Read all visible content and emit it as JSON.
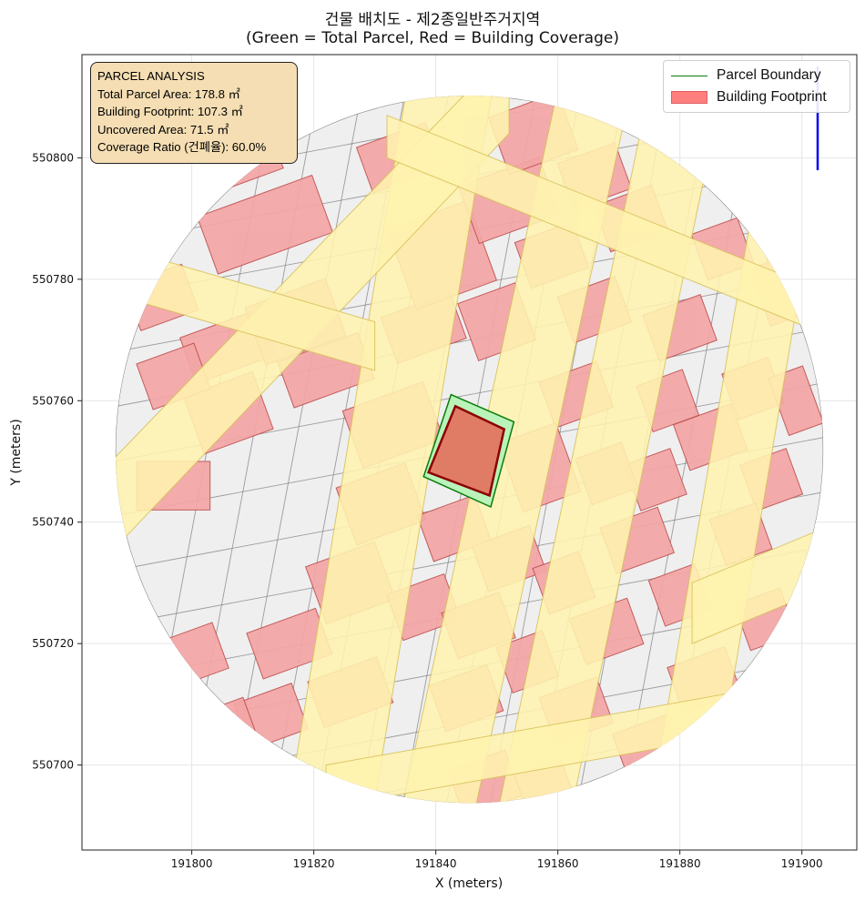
{
  "title_line1": "건물 배치도 - 제2종일반주거지역",
  "title_line2": "(Green = Total Parcel, Red = Building Coverage)",
  "info_box": {
    "heading": "PARCEL ANALYSIS",
    "total_area": "Total Parcel Area: 178.8 ㎡",
    "footprint": "Building Footprint: 107.3 ㎡",
    "uncovered": "Uncovered Area: 71.5 ㎡",
    "coverage": "Coverage Ratio (건폐율): 60.0%"
  },
  "legend": [
    {
      "label": "Parcel Boundary",
      "color": "#0a7d0a",
      "kind": "line"
    },
    {
      "label": "Building Footprint",
      "color": "#ff7f7f",
      "kind": "patch"
    }
  ],
  "colors": {
    "parcel_line": "#0a7d0a",
    "parcel_fill": "#b9f3b9",
    "building_main": "#e07b66",
    "building_outline": "#8b0000",
    "roads": "#fff3b0",
    "background_buildings": "#f4a5a5",
    "lots": "#efefef"
  },
  "chart_data": {
    "type": "map",
    "xlabel": "X (meters)",
    "ylabel": "Y (meters)",
    "xlim": [
      191782,
      191909
    ],
    "ylim": [
      550686,
      550817
    ],
    "xticks": [
      191800,
      191820,
      191840,
      191860,
      191880,
      191900
    ],
    "yticks": [
      550700,
      550720,
      550740,
      550760,
      550780,
      550800
    ],
    "grid": true,
    "legend_position": "top-right",
    "site": {
      "center": [
        191845.5,
        550752
      ],
      "radius": 58
    },
    "parcel_boundary": [
      [
        191842.5,
        550761
      ],
      [
        191852.8,
        550756.5
      ],
      [
        191849,
        550742.5
      ],
      [
        191838,
        550747.5
      ]
    ],
    "building_footprint": [
      [
        191843.2,
        550759.1
      ],
      [
        191851.2,
        550755.3
      ],
      [
        191848.8,
        550744.4
      ],
      [
        191838.8,
        550748.2
      ]
    ],
    "roads": [
      [
        [
          191814,
          550682
        ],
        [
          191828,
          550682
        ],
        [
          191850,
          550816
        ],
        [
          191836,
          550816
        ]
      ],
      [
        [
          191833,
          550686
        ],
        [
          191845,
          550686
        ],
        [
          191873,
          550816
        ],
        [
          191861,
          550816
        ]
      ],
      [
        [
          191848,
          550682
        ],
        [
          191860,
          550682
        ],
        [
          191888,
          550816
        ],
        [
          191876,
          550816
        ]
      ],
      [
        [
          191874,
          550686
        ],
        [
          191884,
          550686
        ],
        [
          191906,
          550816
        ],
        [
          191896,
          550816
        ]
      ],
      [
        [
          191782,
          550730
        ],
        [
          191782,
          550745
        ],
        [
          191852,
          550818
        ],
        [
          191852,
          550804
        ]
      ],
      [
        [
          191782,
          550787
        ],
        [
          191782,
          550779
        ],
        [
          191830,
          550765
        ],
        [
          191830,
          550773
        ]
      ],
      [
        [
          191832,
          550807
        ],
        [
          191832,
          550800
        ],
        [
          191906,
          550770
        ],
        [
          191906,
          550777
        ]
      ],
      [
        [
          191822,
          550693
        ],
        [
          191822,
          550700
        ],
        [
          191906,
          550715
        ],
        [
          191906,
          550708
        ]
      ],
      [
        [
          191882,
          550720
        ],
        [
          191882,
          550730
        ],
        [
          191906,
          550740
        ],
        [
          191906,
          550730
        ]
      ]
    ],
    "buildings": [
      [
        191812,
        550789,
        20,
        10,
        -20
      ],
      [
        191806,
        550769,
        14,
        8,
        -20
      ],
      [
        191817,
        550773,
        14,
        10,
        -20
      ],
      [
        191797,
        550746,
        12,
        8,
        0
      ],
      [
        191806,
        550758,
        12,
        10,
        -20
      ],
      [
        191822,
        550765,
        14,
        8,
        -20
      ],
      [
        191833,
        550756,
        14,
        10,
        -20
      ],
      [
        191831,
        550743,
        12,
        10,
        -20
      ],
      [
        191826,
        550730,
        12,
        10,
        -20
      ],
      [
        191816,
        550720,
        12,
        8,
        -20
      ],
      [
        191813,
        550708,
        10,
        8,
        -20
      ],
      [
        191826,
        550712,
        12,
        8,
        -20
      ],
      [
        191838,
        550726,
        10,
        8,
        -20
      ],
      [
        191843,
        550739,
        10,
        8,
        -20
      ],
      [
        191838,
        550772,
        12,
        8,
        -20
      ],
      [
        191841,
        550784,
        14,
        14,
        -20
      ],
      [
        191850,
        550773,
        10,
        10,
        -20
      ],
      [
        191852,
        550793,
        14,
        10,
        -20
      ],
      [
        191856,
        550804,
        12,
        10,
        -20
      ],
      [
        191859,
        550784,
        10,
        8,
        -20
      ],
      [
        191866,
        550797,
        10,
        8,
        -20
      ],
      [
        191872,
        550790,
        10,
        8,
        -20
      ],
      [
        191866,
        550775,
        10,
        8,
        -20
      ],
      [
        191863,
        550761,
        10,
        8,
        -20
      ],
      [
        191857,
        550749,
        10,
        12,
        -20
      ],
      [
        191852,
        550734,
        10,
        8,
        -20
      ],
      [
        191847,
        550723,
        10,
        8,
        -20
      ],
      [
        191845,
        550711,
        10,
        8,
        -20
      ],
      [
        191848,
        550697,
        10,
        8,
        -20
      ],
      [
        191858,
        550696,
        8,
        8,
        -20
      ],
      [
        191863,
        550709,
        10,
        8,
        -20
      ],
      [
        191868,
        550722,
        10,
        8,
        -20
      ],
      [
        191873,
        550737,
        10,
        8,
        -20
      ],
      [
        191876,
        550747,
        8,
        8,
        -20
      ],
      [
        191878,
        550760,
        8,
        8,
        -20
      ],
      [
        191880,
        550772,
        10,
        8,
        -20
      ],
      [
        191885,
        550754,
        10,
        8,
        -20
      ],
      [
        191892,
        550762,
        8,
        8,
        -20
      ],
      [
        191895,
        550747,
        8,
        8,
        -20
      ],
      [
        191899,
        550760,
        6,
        10,
        -20
      ],
      [
        191890,
        550738,
        8,
        8,
        -20
      ],
      [
        191894,
        550724,
        8,
        8,
        -20
      ],
      [
        191884,
        550714,
        10,
        8,
        -20
      ],
      [
        191875,
        550703,
        10,
        8,
        -20
      ],
      [
        191886,
        550700,
        8,
        8,
        -20
      ],
      [
        191897,
        550705,
        8,
        8,
        -20
      ],
      [
        191880,
        550728,
        8,
        8,
        -20
      ],
      [
        191887,
        550785,
        8,
        8,
        -20
      ],
      [
        191896,
        550778,
        6,
        10,
        -20
      ],
      [
        191808,
        550800,
        12,
        8,
        -20
      ],
      [
        191806,
        550706,
        8,
        8,
        -20
      ],
      [
        191800,
        550718,
        10,
        8,
        -20
      ],
      [
        191797,
        550764,
        10,
        8,
        -20
      ],
      [
        191795,
        550777,
        10,
        8,
        -20
      ],
      [
        191834,
        550800,
        12,
        8,
        -20
      ],
      [
        191868,
        550748,
        8,
        8,
        -20
      ],
      [
        191861,
        550730,
        8,
        8,
        -20
      ],
      [
        191855,
        550717,
        8,
        8,
        -20
      ]
    ]
  }
}
